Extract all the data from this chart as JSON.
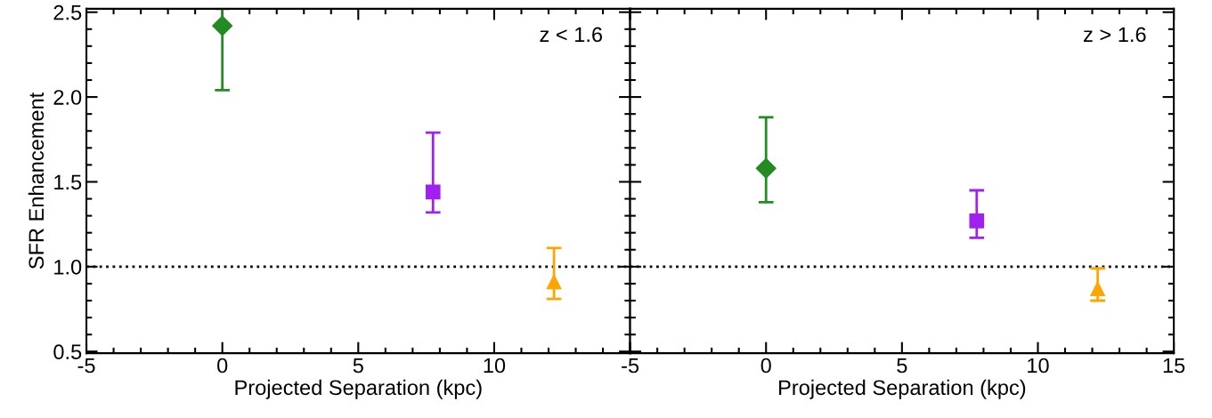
{
  "chart_data": [
    {
      "type": "scatter",
      "xlabel": "Projected Separation (kpc)",
      "ylabel": "SFR Enhancement",
      "xlim": [
        -5,
        15
      ],
      "ylim": [
        0.49,
        2.52
      ],
      "xticks": [
        -5,
        0,
        5,
        10,
        {
          "value": 15,
          "label": null
        }
      ],
      "yticks": [
        0.5,
        {
          "value": 1.0,
          "label": "1.0"
        },
        1.5,
        {
          "value": 2.0,
          "label": "2.0"
        },
        2.5
      ],
      "annotations": [
        "z < 1.6"
      ],
      "ref_lines": [
        {
          "axis": "y",
          "value": 1.0,
          "line_style": "dotted",
          "color": "#000000"
        }
      ],
      "series": [
        {
          "color": "#228b22",
          "marker": "diamond",
          "x": [
            0
          ],
          "values": [
            2.42
          ],
          "errors": [
            [
              2.04,
              2.52
            ]
          ]
        },
        {
          "color": "#a020f0",
          "marker": "square",
          "x": [
            7.75
          ],
          "values": [
            1.44
          ],
          "errors": [
            [
              1.32,
              1.79
            ]
          ]
        },
        {
          "color": "#ffa500",
          "marker": "triangle",
          "x": [
            12.2
          ],
          "values": [
            0.91
          ],
          "errors": [
            [
              0.81,
              1.11
            ]
          ]
        }
      ]
    },
    {
      "type": "scatter",
      "xlabel": "Projected Separation (kpc)",
      "xlim": [
        -5,
        15
      ],
      "ylim": [
        0.49,
        2.52
      ],
      "xticks": [
        -5,
        0,
        5,
        10,
        15
      ],
      "yticks": [
        0.5,
        1.0,
        1.5,
        2.0,
        2.5
      ],
      "tick_labels": "x",
      "annotations": [
        "z > 1.6"
      ],
      "ref_lines": [
        {
          "axis": "y",
          "value": 1.0,
          "line_style": "dotted",
          "color": "#000000"
        }
      ],
      "series": [
        {
          "color": "#228b22",
          "marker": "diamond",
          "x": [
            0
          ],
          "values": [
            1.58
          ],
          "errors": [
            [
              1.38,
              1.88
            ]
          ]
        },
        {
          "color": "#a020f0",
          "marker": "square",
          "x": [
            7.75
          ],
          "values": [
            1.27
          ],
          "errors": [
            [
              1.17,
              1.45
            ]
          ]
        },
        {
          "color": "#ffa500",
          "marker": "triangle",
          "x": [
            12.2
          ],
          "values": [
            0.87
          ],
          "errors": [
            [
              0.8,
              0.99
            ]
          ]
        }
      ]
    }
  ]
}
